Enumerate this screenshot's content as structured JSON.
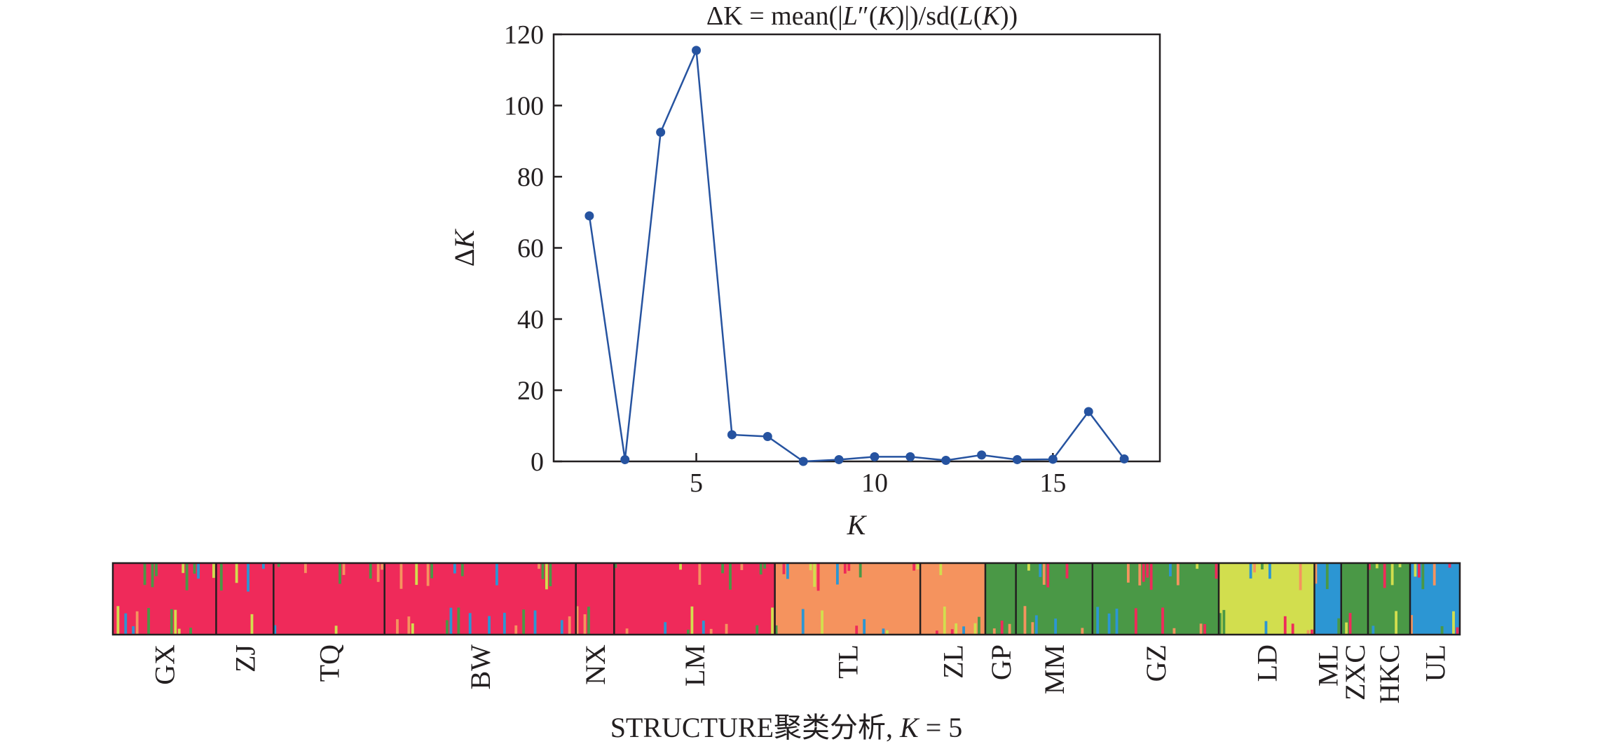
{
  "chart_data": [
    {
      "type": "line",
      "title": "ΔK = mean(|L″(K)|)/sd(L(K))",
      "title_parts": [
        "ΔK = mean(|",
        "L",
        "″(",
        "K",
        ")|)/sd(",
        "L",
        "(",
        "K",
        "))"
      ],
      "xlabel": "K",
      "ylabel_parts": [
        "Δ",
        "K"
      ],
      "xlim": [
        1,
        18
      ],
      "ylim": [
        0,
        120
      ],
      "xticks": [
        "5",
        "10",
        "15"
      ],
      "yticks": [
        "0",
        "20",
        "40",
        "60",
        "80",
        "100",
        "120"
      ],
      "grid": false,
      "line_color": "#2653a0",
      "x": [
        2,
        3,
        4,
        5,
        6,
        7,
        8,
        9,
        10,
        11,
        12,
        13,
        14,
        15,
        16,
        17
      ],
      "values": [
        69,
        0.5,
        92.5,
        115.5,
        7.5,
        7,
        0,
        0.5,
        1.3,
        1.3,
        0.3,
        1.8,
        0.5,
        0.6,
        14,
        0.7
      ]
    },
    {
      "type": "bar",
      "stacked": true,
      "caption_text": "STRUCTURE聚类分析, ",
      "caption_k": "K",
      "caption_value": " = 5",
      "cluster_colors": [
        "#ef2a5a",
        "#f5935e",
        "#4a9846",
        "#d2de4e",
        "#2c96d3"
      ],
      "categories": [
        "GX",
        "ZJ",
        "TQ",
        "BW",
        "NX",
        "LM",
        "TL",
        "ZL",
        "GP",
        "MM",
        "GZ",
        "LD",
        "ML",
        "ZXC",
        "HKC",
        "UL"
      ],
      "population_sizes": [
        27,
        15,
        29,
        50,
        10,
        42,
        38,
        17,
        8,
        20,
        33,
        25,
        7,
        7,
        11,
        13
      ],
      "dominant_cluster": [
        1,
        1,
        1,
        1,
        1,
        1,
        2,
        2,
        3,
        3,
        3,
        4,
        5,
        3,
        3,
        5
      ]
    }
  ]
}
